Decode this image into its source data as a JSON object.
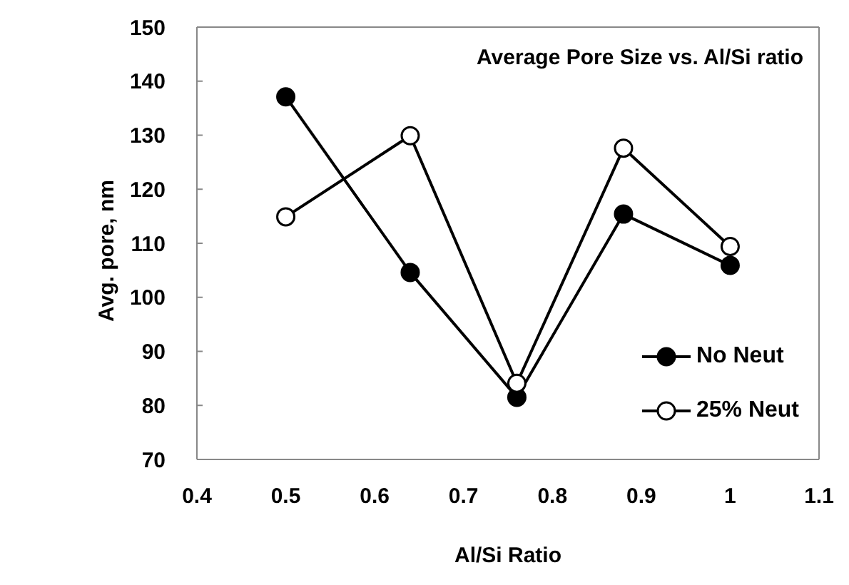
{
  "chart_data": {
    "type": "line",
    "title": "Average Pore Size vs. Al/Si ratio",
    "xlabel": "Al/Si Ratio",
    "ylabel": "Avg. pore, nm",
    "x": [
      0.5,
      0.64,
      0.76,
      0.88,
      1
    ],
    "series": [
      {
        "name": "No Neut",
        "color": "#000000",
        "values": [
          137.1,
          104.6,
          81.5,
          115.4,
          105.9
        ]
      },
      {
        "name": "25% Neut",
        "color": "#000000",
        "values": [
          114.9,
          129.9,
          84.1,
          127.6,
          109.4
        ]
      }
    ],
    "xlim": [
      0.4,
      1.1
    ],
    "xticks": [
      0.4,
      0.5,
      0.6,
      0.7,
      0.8,
      0.9,
      1,
      1.1
    ],
    "ylim": [
      70,
      150
    ],
    "yticks": [
      70,
      80,
      90,
      100,
      110,
      120,
      130,
      140,
      150
    ],
    "grid": false,
    "legend": "bottom right",
    "marker": "circle",
    "line_style": "solid"
  }
}
